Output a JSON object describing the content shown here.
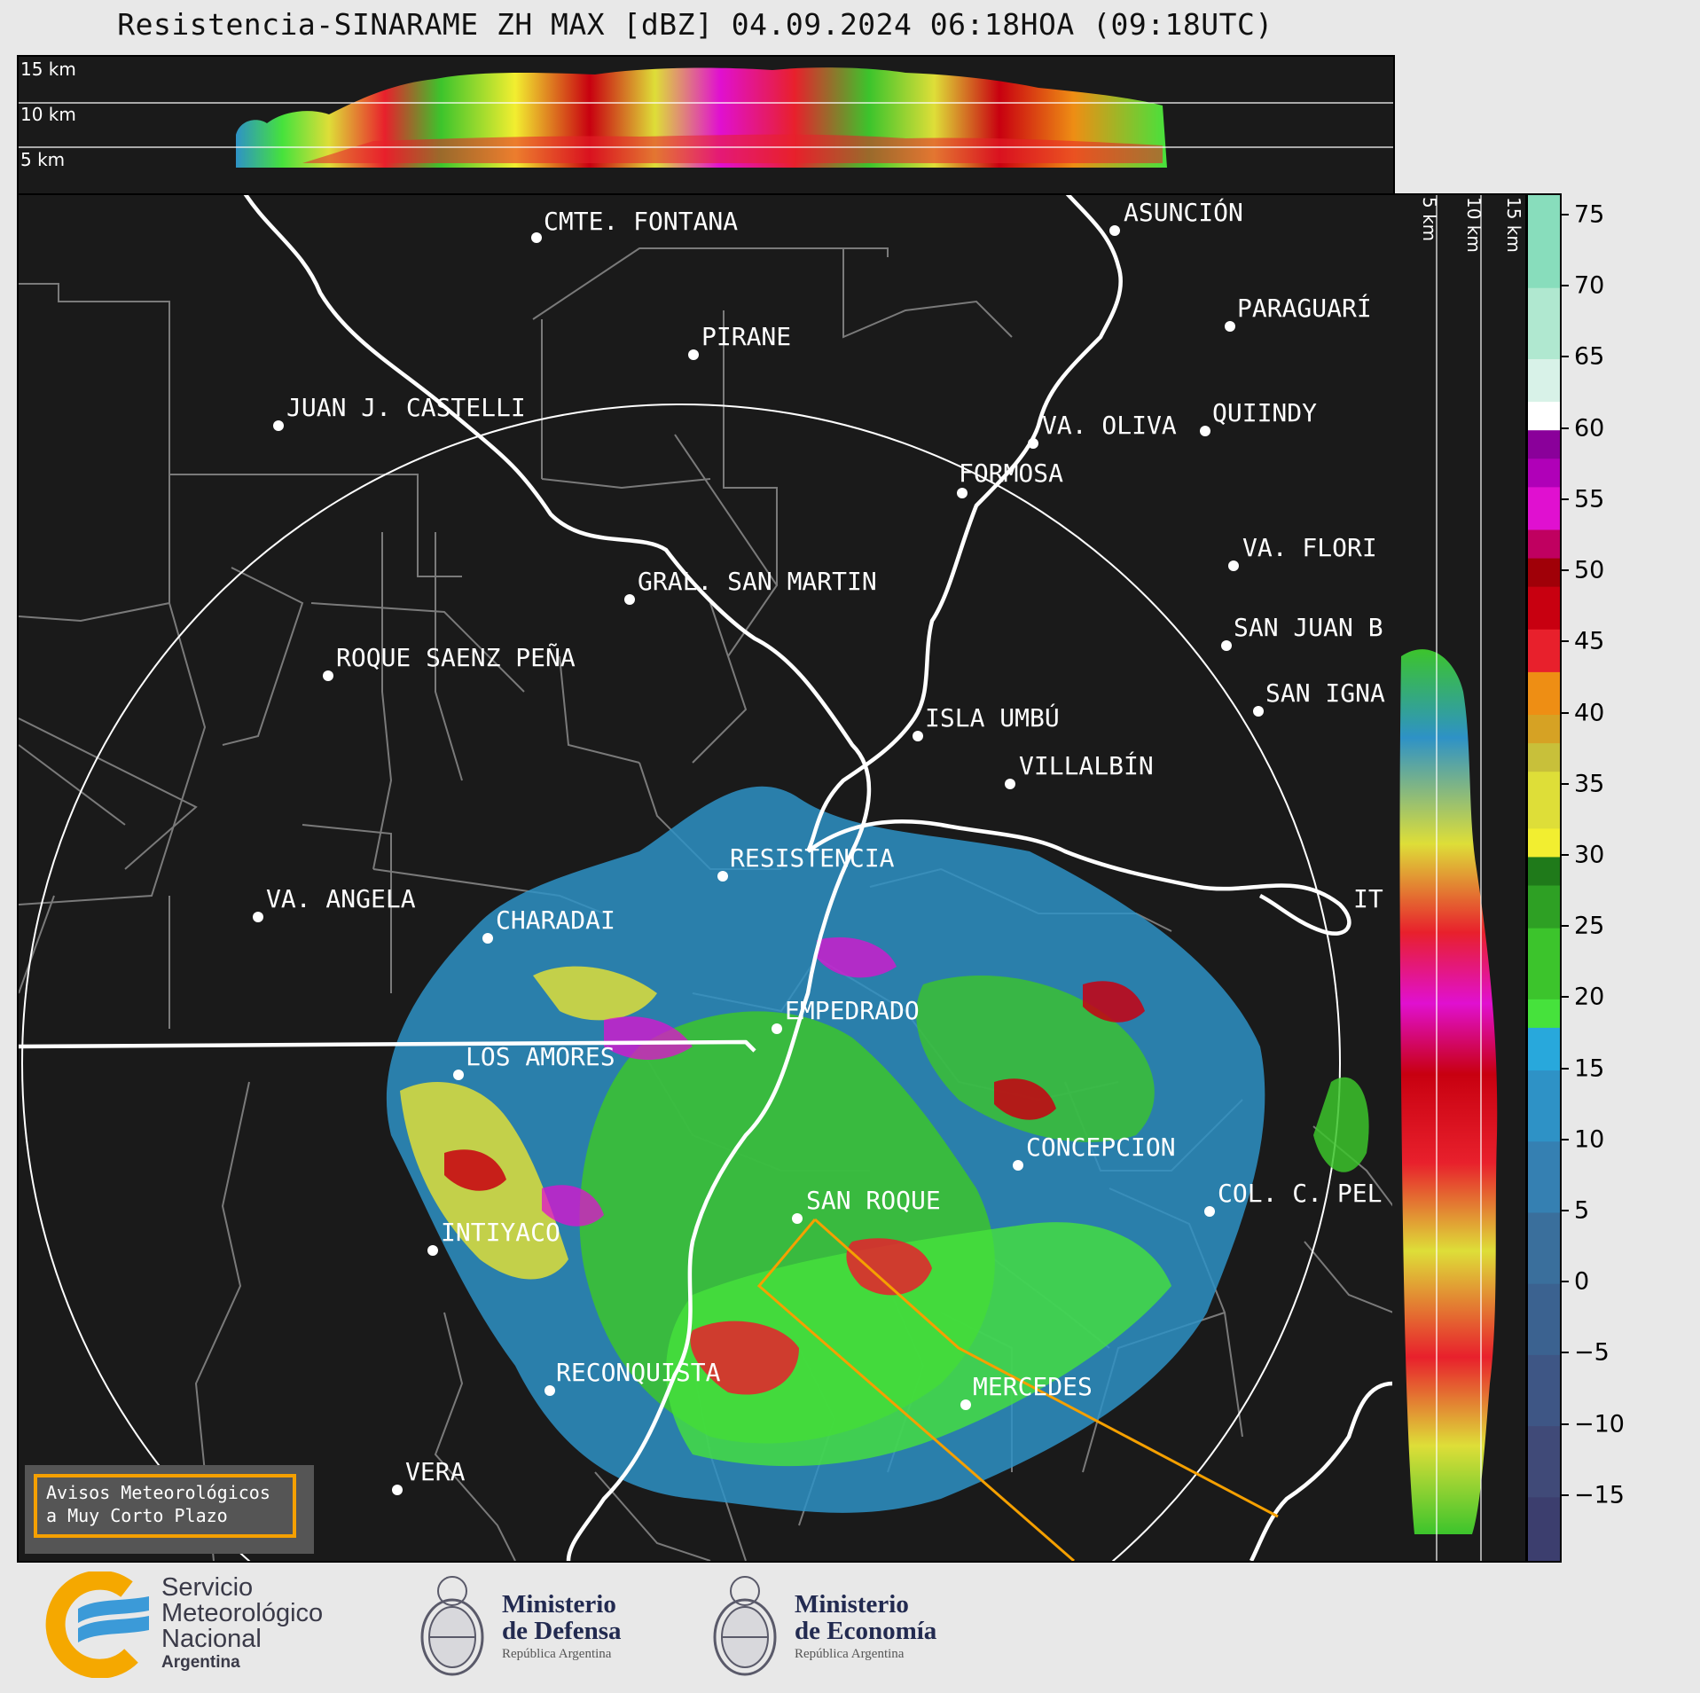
{
  "title": "Resistencia-SINARAME ZH MAX [dBZ] 04.09.2024 06:18HOA (09:18UTC)",
  "top_panel": {
    "height_labels": [
      "15 km",
      "10 km",
      "5 km"
    ]
  },
  "side_panel": {
    "height_labels": [
      "5 km",
      "10 km",
      "15 km"
    ]
  },
  "colorbar": {
    "unit": "dBZ",
    "ticks": [
      "75",
      "70",
      "65",
      "60",
      "55",
      "50",
      "45",
      "40",
      "35",
      "30",
      "25",
      "20",
      "15",
      "10",
      "5",
      "0",
      "−5",
      "−10",
      "−15"
    ],
    "tick_values": [
      75,
      70,
      65,
      60,
      55,
      50,
      45,
      40,
      35,
      30,
      25,
      20,
      15,
      10,
      5,
      0,
      -5,
      -10,
      -15
    ],
    "range": [
      -19.5,
      76.5
    ],
    "bands": [
      {
        "from": -19.5,
        "to": -15,
        "color": "#3c3e6e"
      },
      {
        "from": -15,
        "to": -10,
        "color": "#404a78"
      },
      {
        "from": -10,
        "to": -5,
        "color": "#3e5685"
      },
      {
        "from": -5,
        "to": 0,
        "color": "#3b6290"
      },
      {
        "from": 0,
        "to": 5,
        "color": "#3a6f9c"
      },
      {
        "from": 5,
        "to": 10,
        "color": "#3580b2"
      },
      {
        "from": 10,
        "to": 15,
        "color": "#2e92c6"
      },
      {
        "from": 15,
        "to": 18,
        "color": "#28a8dc"
      },
      {
        "from": 18,
        "to": 20,
        "color": "#46e23c"
      },
      {
        "from": 20,
        "to": 25,
        "color": "#3cc42c"
      },
      {
        "from": 25,
        "to": 28,
        "color": "#2ea024"
      },
      {
        "from": 28,
        "to": 30,
        "color": "#1f7a1a"
      },
      {
        "from": 30,
        "to": 32,
        "color": "#f2ee30"
      },
      {
        "from": 32,
        "to": 36,
        "color": "#dede38"
      },
      {
        "from": 36,
        "to": 38,
        "color": "#c8c03a"
      },
      {
        "from": 38,
        "to": 40,
        "color": "#d6a224"
      },
      {
        "from": 40,
        "to": 43,
        "color": "#ee8e14"
      },
      {
        "from": 43,
        "to": 46,
        "color": "#e8202c"
      },
      {
        "from": 46,
        "to": 49,
        "color": "#c80010"
      },
      {
        "from": 49,
        "to": 51,
        "color": "#a00008"
      },
      {
        "from": 51,
        "to": 53,
        "color": "#c00060"
      },
      {
        "from": 53,
        "to": 56,
        "color": "#e010d0"
      },
      {
        "from": 56,
        "to": 58,
        "color": "#b000b8"
      },
      {
        "from": 58,
        "to": 60,
        "color": "#8a009a"
      },
      {
        "from": 60,
        "to": 62,
        "color": "#ffffff"
      },
      {
        "from": 62,
        "to": 65,
        "color": "#d8f2e8"
      },
      {
        "from": 65,
        "to": 70,
        "color": "#b0e8d0"
      },
      {
        "from": 70,
        "to": 76.5,
        "color": "#88ddbc"
      }
    ]
  },
  "map": {
    "range_ring_radius_km": 240,
    "cities": [
      {
        "name": "CMTE. FONTANA"
      },
      {
        "name": "ASUNCIÓN"
      },
      {
        "name": "PIRANE"
      },
      {
        "name": "PARAGUARÍ"
      },
      {
        "name": "JUAN J. CASTELLI"
      },
      {
        "name": "VA. OLIVA"
      },
      {
        "name": "QUIINDY"
      },
      {
        "name": "FORMOSA"
      },
      {
        "name": "VA. FLORI"
      },
      {
        "name": "GRAL. SAN MARTIN"
      },
      {
        "name": "SAN JUAN B"
      },
      {
        "name": "ROQUE SAENZ PEÑA"
      },
      {
        "name": "SAN IGNA"
      },
      {
        "name": "ISLA UMBÚ"
      },
      {
        "name": "VILLALBÍN"
      },
      {
        "name": "RESISTENCIA"
      },
      {
        "name": "VA. ANGELA"
      },
      {
        "name": "CHARADAI"
      },
      {
        "name": "IT"
      },
      {
        "name": "EMPEDRADO"
      },
      {
        "name": "LOS AMORES"
      },
      {
        "name": "CONCEPCION"
      },
      {
        "name": "SAN ROQUE"
      },
      {
        "name": "COL. C. PEL"
      },
      {
        "name": "INTIYACO"
      },
      {
        "name": "RECONQUISTA"
      },
      {
        "name": "MERCEDES"
      },
      {
        "name": "VERA"
      }
    ]
  },
  "avisos": {
    "line1": "Avisos Meteorológicos",
    "line2": "a Muy Corto Plazo"
  },
  "footer": {
    "smn": {
      "line1": "Servicio",
      "line2": "Meteorológico",
      "line3": "Nacional",
      "line4": "Argentina"
    },
    "defensa": {
      "line1": "Ministerio",
      "line2": "de Defensa",
      "line3": "República Argentina"
    },
    "economia": {
      "line1": "Ministerio",
      "line2": "de Economía",
      "line3": "República Argentina"
    }
  }
}
